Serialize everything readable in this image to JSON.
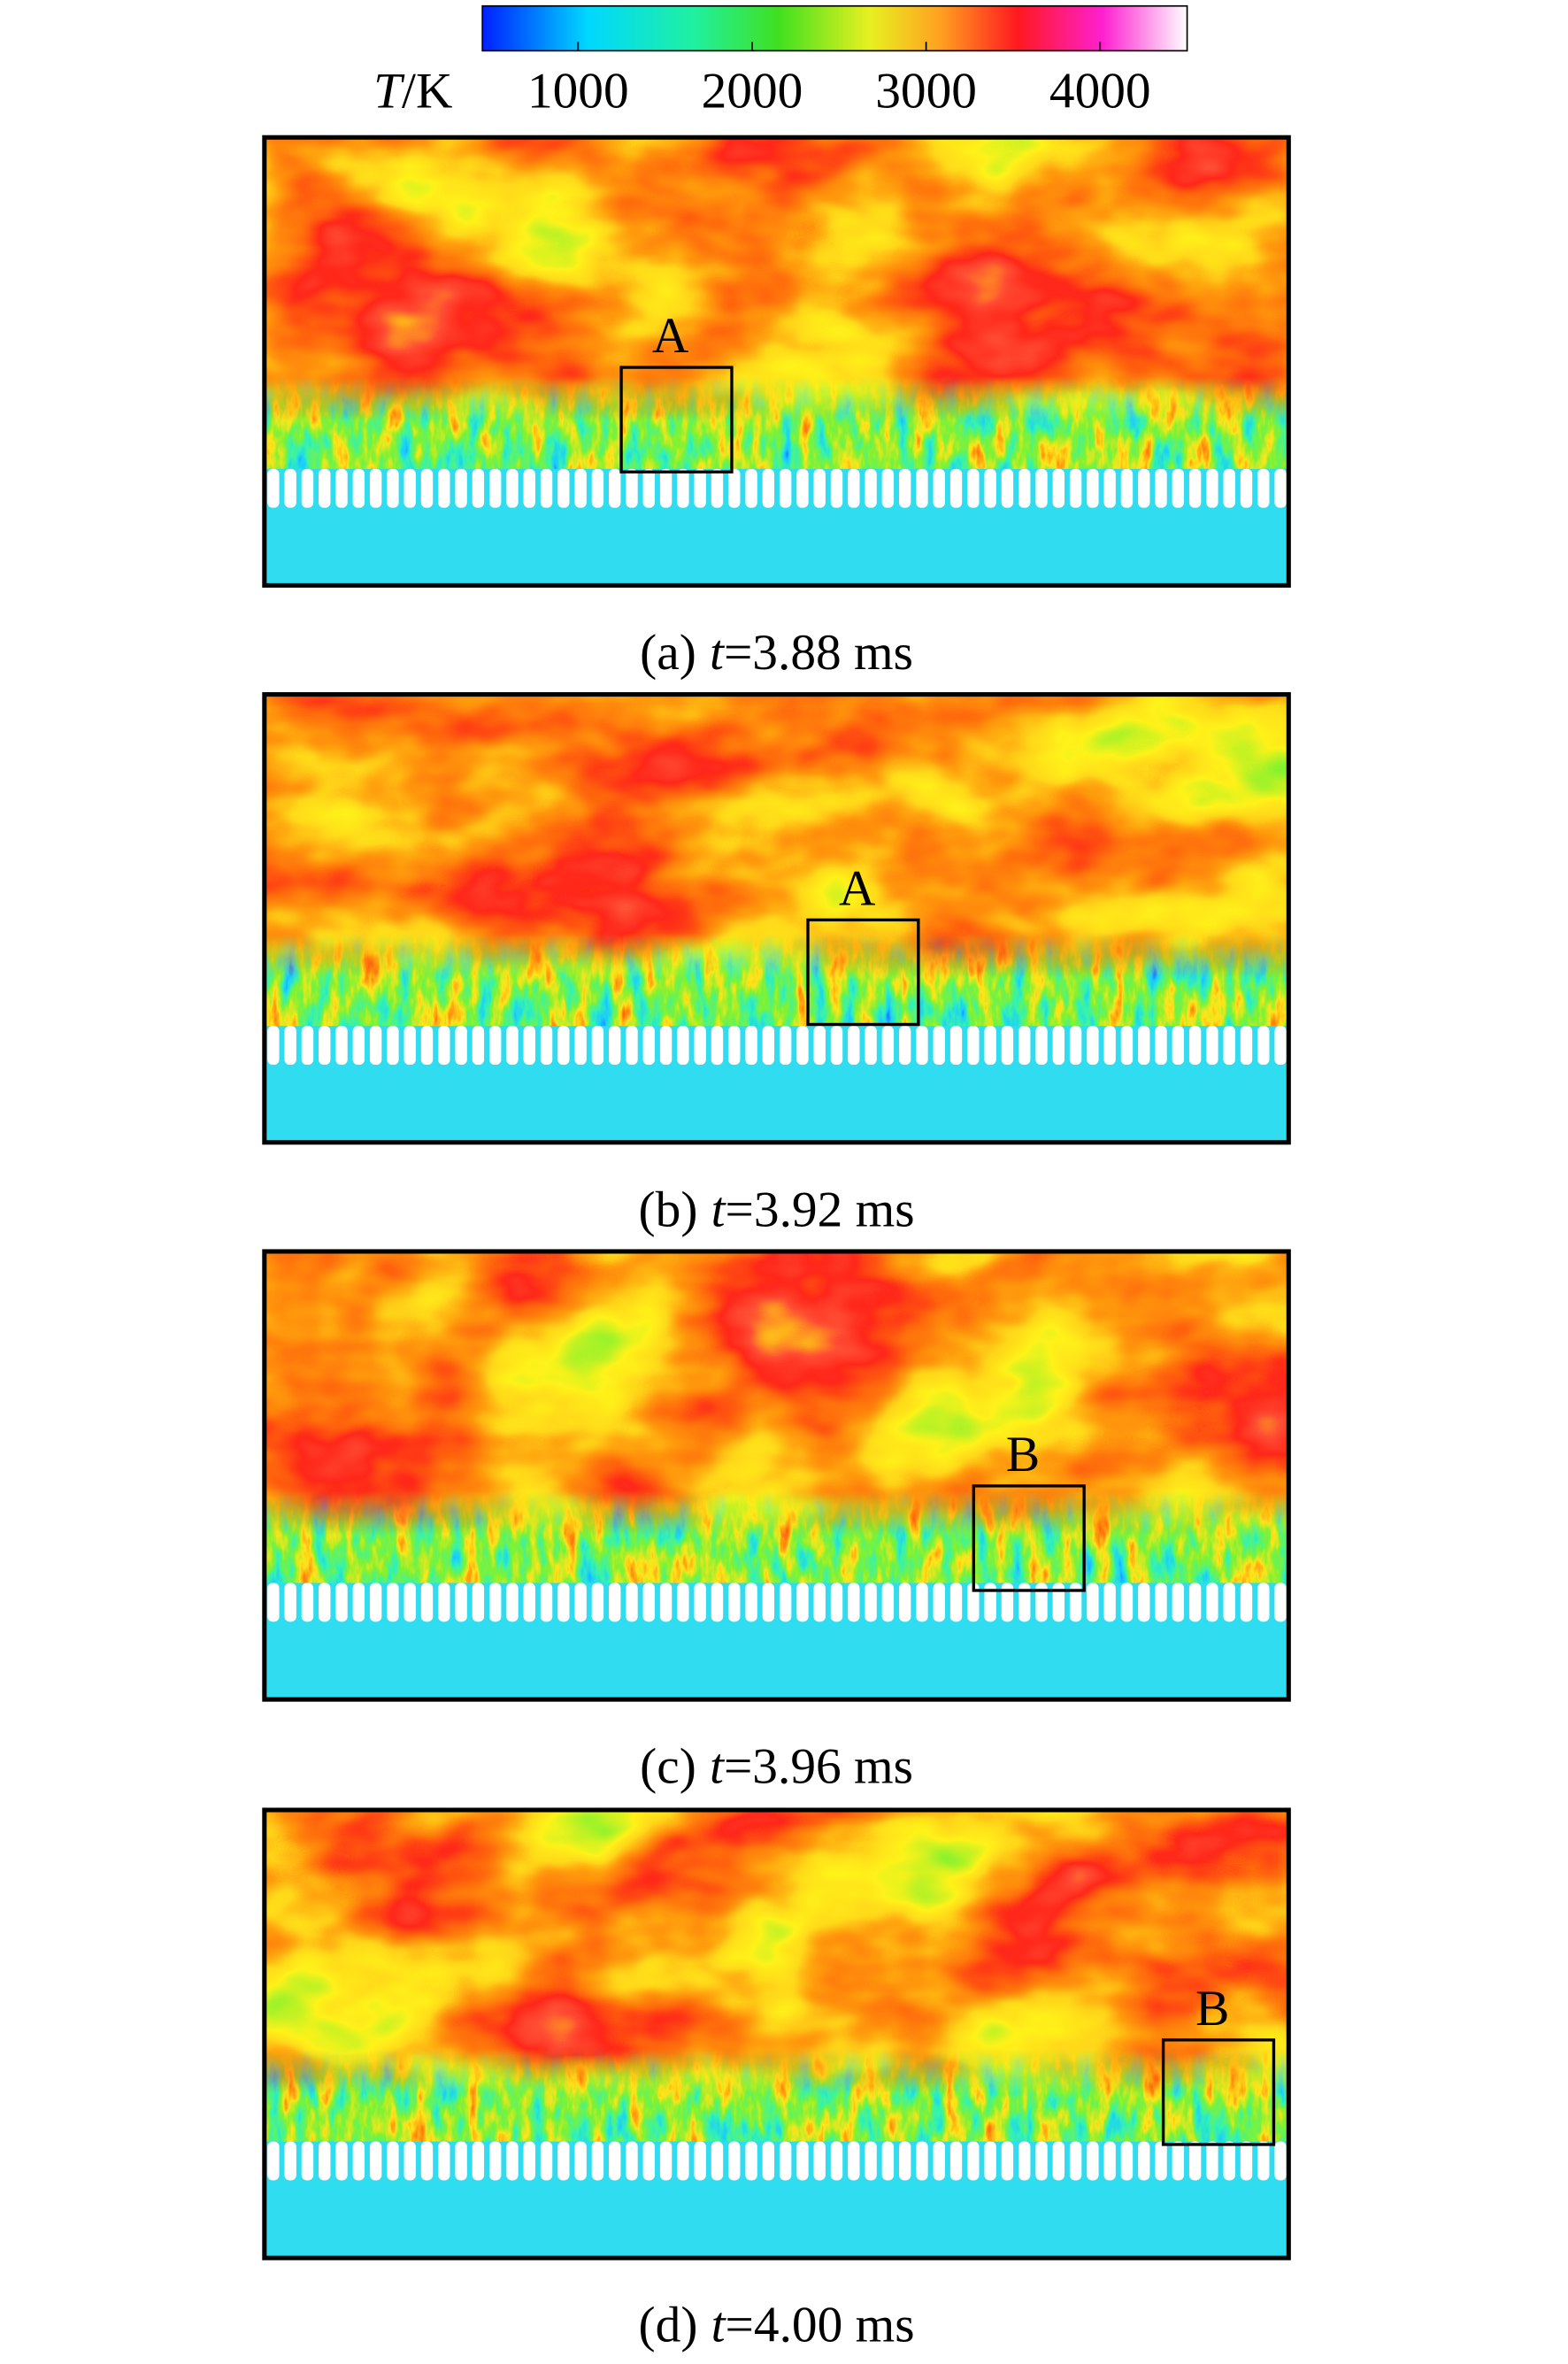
{
  "colorbar": {
    "label": {
      "symbol": "T",
      "unit": "/K"
    },
    "range": [
      450,
      4500
    ],
    "ticks": [
      1000,
      2000,
      3000,
      4000
    ]
  },
  "panels": [
    {
      "caption": {
        "index": "(a)",
        "symbol": "t",
        "text": "=3.88 ms"
      },
      "marker": "A"
    },
    {
      "caption": {
        "index": "(b)",
        "symbol": "t",
        "text": "=3.92 ms"
      },
      "marker": "A"
    },
    {
      "caption": {
        "index": "(c)",
        "symbol": "t",
        "text": "=3.96 ms"
      },
      "marker": "B"
    },
    {
      "caption": {
        "index": "(d)",
        "symbol": "t",
        "text": "=4.00 ms"
      },
      "marker": "B"
    }
  ]
}
